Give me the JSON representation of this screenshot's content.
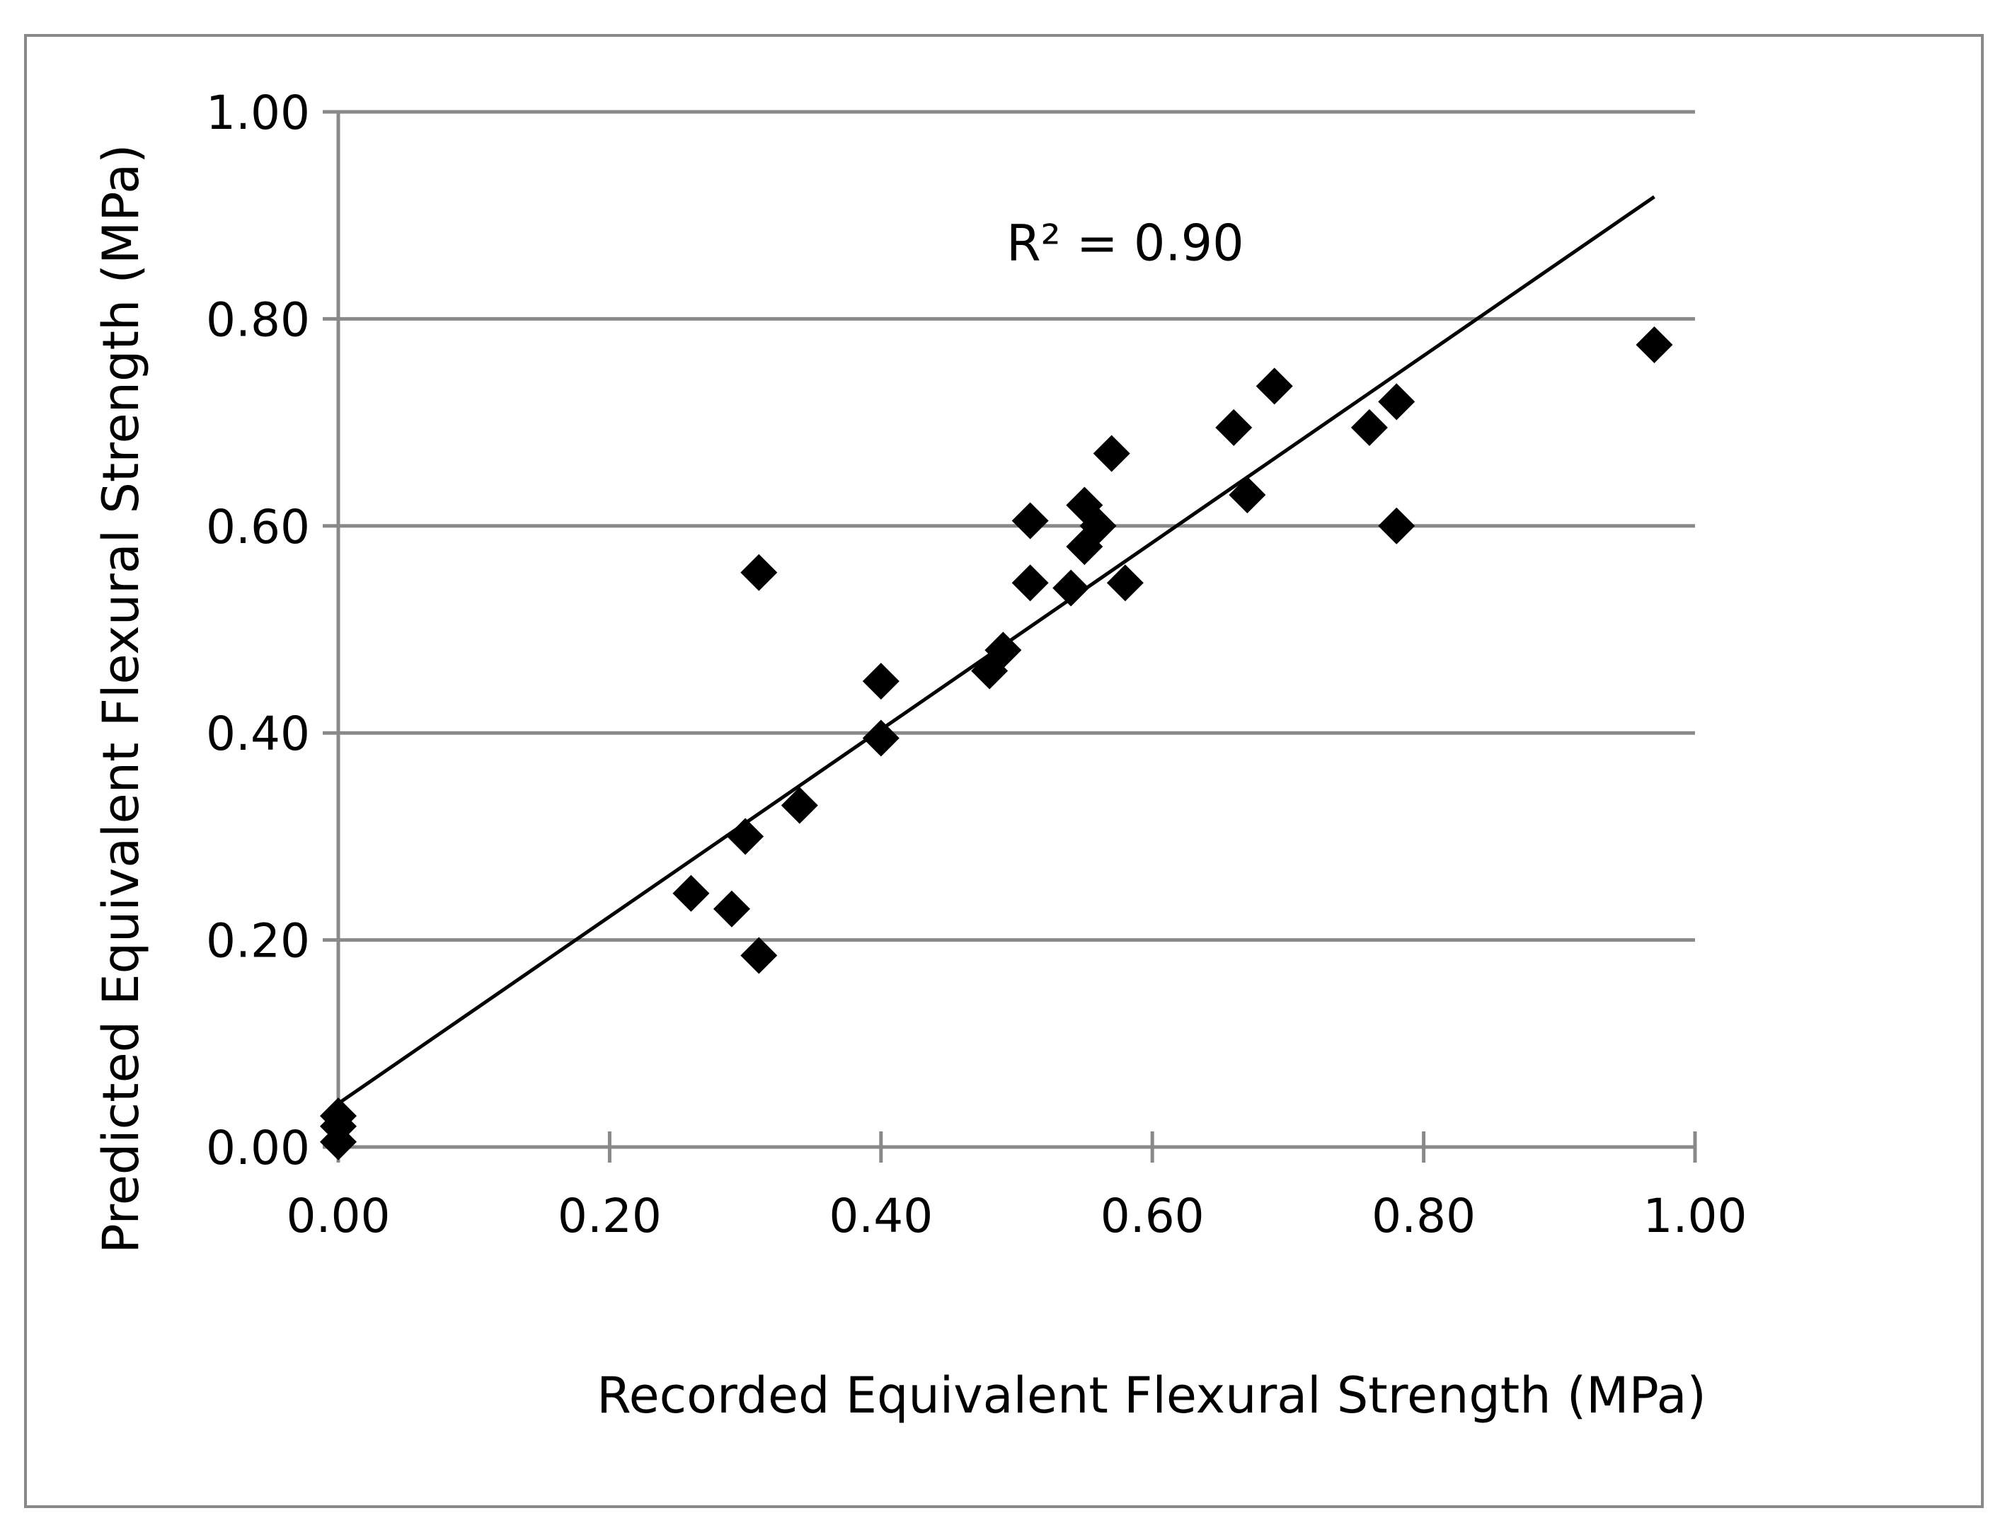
{
  "chart_data": {
    "type": "scatter",
    "title": "",
    "xlabel": "Recorded Equivalent Flexural Strength (MPa)",
    "ylabel": "Predicted Equivalent Flexural Strength (MPa)",
    "xlim": [
      0,
      1
    ],
    "ylim": [
      0,
      1
    ],
    "x_ticks": [
      0,
      0.2,
      0.4,
      0.6,
      0.8,
      1.0
    ],
    "y_ticks": [
      0,
      0.2,
      0.4,
      0.6,
      0.8,
      1.0
    ],
    "x_tick_labels": [
      "0.00",
      "0.20",
      "0.40",
      "0.60",
      "0.80",
      "1.00"
    ],
    "y_tick_labels": [
      "0.00",
      "0.20",
      "0.40",
      "0.60",
      "0.80",
      "1.00"
    ],
    "grid": "horizontal",
    "marker": "diamond",
    "colors": {
      "marker": "#000000",
      "gridline": "#898989",
      "axis": "#898989",
      "trendline": "#000000",
      "frame": "#898989"
    },
    "points": [
      {
        "x": 0.0,
        "y": 0.005
      },
      {
        "x": 0.0,
        "y": 0.02
      },
      {
        "x": 0.0,
        "y": 0.03
      },
      {
        "x": 0.26,
        "y": 0.245
      },
      {
        "x": 0.29,
        "y": 0.23
      },
      {
        "x": 0.3,
        "y": 0.3
      },
      {
        "x": 0.31,
        "y": 0.185
      },
      {
        "x": 0.31,
        "y": 0.555
      },
      {
        "x": 0.34,
        "y": 0.33
      },
      {
        "x": 0.4,
        "y": 0.395
      },
      {
        "x": 0.4,
        "y": 0.45
      },
      {
        "x": 0.48,
        "y": 0.46
      },
      {
        "x": 0.49,
        "y": 0.48
      },
      {
        "x": 0.51,
        "y": 0.545
      },
      {
        "x": 0.51,
        "y": 0.605
      },
      {
        "x": 0.54,
        "y": 0.54
      },
      {
        "x": 0.55,
        "y": 0.58
      },
      {
        "x": 0.55,
        "y": 0.62
      },
      {
        "x": 0.56,
        "y": 0.6
      },
      {
        "x": 0.57,
        "y": 0.67
      },
      {
        "x": 0.58,
        "y": 0.545
      },
      {
        "x": 0.66,
        "y": 0.695
      },
      {
        "x": 0.67,
        "y": 0.63
      },
      {
        "x": 0.69,
        "y": 0.735
      },
      {
        "x": 0.76,
        "y": 0.695
      },
      {
        "x": 0.78,
        "y": 0.6
      },
      {
        "x": 0.78,
        "y": 0.72
      },
      {
        "x": 0.97,
        "y": 0.775
      }
    ],
    "trendline": {
      "type": "linear",
      "x_start": 0.0,
      "y_start": 0.042,
      "x_end": 0.97,
      "y_end": 0.918
    },
    "annotations": [
      {
        "text": "R² = 0.90",
        "x": 0.58,
        "y": 0.873
      }
    ]
  }
}
